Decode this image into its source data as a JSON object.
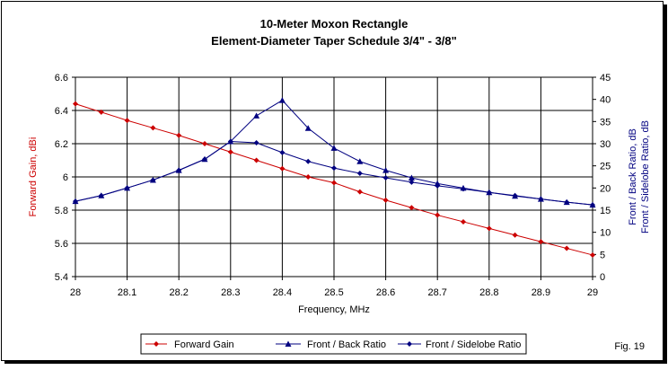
{
  "chart_data": {
    "type": "line",
    "title": "10-Meter Moxon Rectangle",
    "subtitle": "Element-Diameter Taper Schedule 3/4\" - 3/8\"",
    "xlabel": "Frequency, MHz",
    "ylabel_left": "Forward Gain, dBi",
    "ylabel_right_1": "Front / Back Ratio,  dB",
    "ylabel_right_2": "Front / Sidelobe Ratio,  dB",
    "xlim": [
      28,
      29
    ],
    "ylim_left": [
      5.4,
      6.6
    ],
    "ylim_right": [
      0,
      45
    ],
    "x_ticks": [
      "28",
      "28.1",
      "28.2",
      "28.3",
      "28.4",
      "28.5",
      "28.6",
      "28.7",
      "28.8",
      "28.9",
      "29"
    ],
    "y_left_ticks": [
      "5.4",
      "5.6",
      "5.8",
      "6",
      "6.2",
      "6.4",
      "6.6"
    ],
    "y_right_ticks": [
      "0",
      "5",
      "10",
      "15",
      "20",
      "25",
      "30",
      "35",
      "40",
      "45"
    ],
    "grid": true,
    "legend_position": "bottom",
    "x": [
      28.0,
      28.05,
      28.1,
      28.15,
      28.2,
      28.25,
      28.3,
      28.35,
      28.4,
      28.45,
      28.5,
      28.55,
      28.6,
      28.65,
      28.7,
      28.75,
      28.8,
      28.85,
      28.9,
      28.95,
      29.0
    ],
    "series": [
      {
        "name": "Forward Gain",
        "axis": "left",
        "color": "#cc0000",
        "marker": "diamond",
        "values": [
          6.44,
          6.39,
          6.34,
          6.295,
          6.25,
          6.2,
          6.15,
          6.1,
          6.05,
          6.0,
          5.965,
          5.91,
          5.86,
          5.815,
          5.77,
          5.73,
          5.69,
          5.65,
          5.61,
          5.57,
          5.53
        ]
      },
      {
        "name": "Front / Back Ratio",
        "axis": "right",
        "color": "#000080",
        "marker": "triangle",
        "values": [
          17.0,
          18.3,
          20.0,
          21.8,
          24.0,
          26.5,
          30.5,
          36.3,
          39.8,
          33.5,
          29.0,
          26.0,
          24.0,
          22.3,
          21.0,
          20.0,
          19.0,
          18.2,
          17.5,
          16.8,
          16.2
        ]
      },
      {
        "name": "Front / Sidelobe Ratio",
        "axis": "right",
        "color": "#000080",
        "marker": "diamond",
        "values": [
          17.0,
          18.3,
          20.0,
          21.8,
          24.0,
          26.5,
          30.5,
          30.2,
          28.0,
          26.0,
          24.5,
          23.3,
          22.3,
          21.3,
          20.5,
          19.8,
          19.0,
          18.3,
          17.5,
          16.8,
          16.2
        ]
      }
    ]
  },
  "figure_label": "Fig. 19"
}
